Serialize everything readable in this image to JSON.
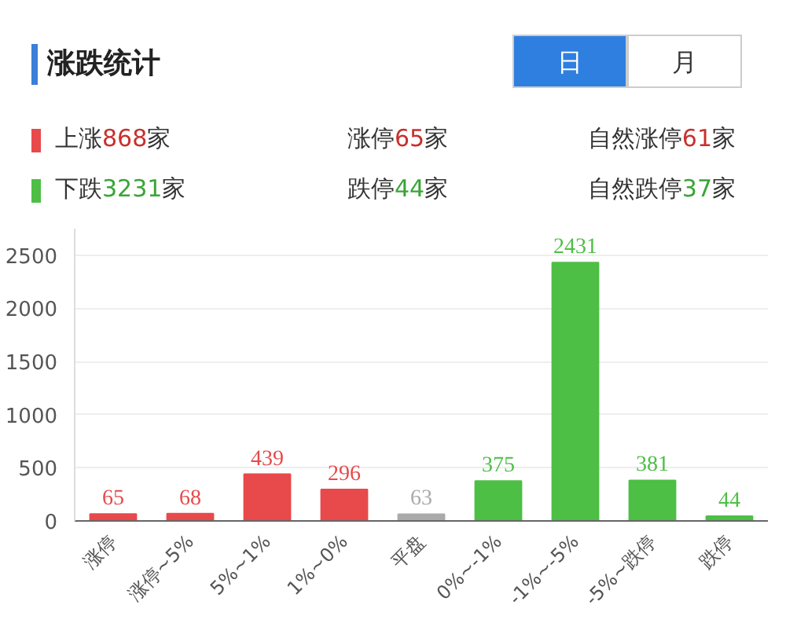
{
  "chart_data": {
    "type": "bar",
    "title": "涨跌统计",
    "annotations": [
      "日",
      "月",
      "上涨868家",
      "涨停65家",
      "自然涨停61家",
      "下跌3231家",
      "跌停44家",
      "自然跌停37家"
    ],
    "categories": [
      "涨停",
      "涨停~5%",
      "5%~1%",
      "1%~0%",
      "平盘",
      "0%~-1%",
      "-1%~-5%",
      "-5%~跌停",
      "跌停"
    ],
    "values": [
      65,
      68,
      439,
      296,
      63,
      375,
      2431,
      381,
      44
    ],
    "colors": [
      "#e8494b",
      "#e8494b",
      "#e8494b",
      "#e8494b",
      "#aaaaaa",
      "#4dbf45",
      "#4dbf45",
      "#4dbf45",
      "#4dbf45"
    ],
    "ylim": [
      0,
      2750
    ],
    "yticks": [
      0,
      500,
      1000,
      1500,
      2000,
      2500
    ],
    "grid": "y",
    "data_labels": true
  }
}
